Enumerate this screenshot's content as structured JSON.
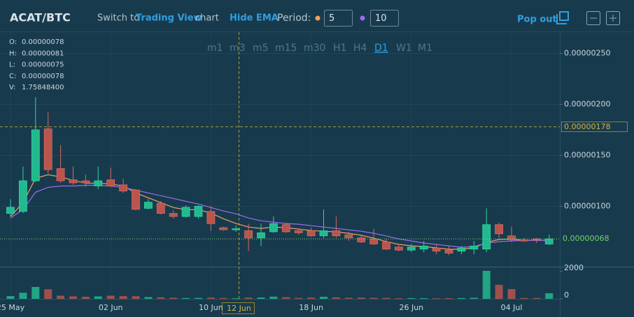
{
  "header": {
    "symbol": "ACAT/BTC",
    "switch_prefix": "Switch to",
    "switch_link": "Trading View",
    "switch_suffix": "chart",
    "ema_toggle": "Hide EMA",
    "period_label": "Period:",
    "pop_out": "Pop out"
  },
  "timeframes": {
    "items": [
      "m1",
      "m3",
      "m5",
      "m15",
      "m30",
      "H1",
      "H4",
      "D1",
      "W1",
      "M1"
    ],
    "active": "D1"
  },
  "ohlc_legend": [
    {
      "label": "O:",
      "value": "0.00000078"
    },
    {
      "label": "H:",
      "value": "0.00000081"
    },
    {
      "label": "L:",
      "value": "0.00000075"
    },
    {
      "label": "C:",
      "value": "0.00000078"
    },
    {
      "label": "V:",
      "value": "1.75848400"
    }
  ],
  "chart_data": {
    "type": "candlestick",
    "categories": [
      "25 May",
      null,
      null,
      null,
      null,
      null,
      null,
      null,
      "02 Jun",
      null,
      null,
      null,
      null,
      null,
      null,
      null,
      "10 Jun",
      null,
      null,
      null,
      null,
      null,
      null,
      null,
      "18 Jun",
      null,
      null,
      null,
      null,
      null,
      null,
      null,
      "26 Jun",
      null,
      null,
      null,
      null,
      null,
      null,
      null,
      "04 Jul",
      null,
      null,
      null
    ],
    "open": [
      9.3e-07,
      9.5e-07,
      1.25e-06,
      1.76e-06,
      1.37e-06,
      1.26e-06,
      1.25e-06,
      1.2e-06,
      1.26e-06,
      1.21e-06,
      1.16e-06,
      9.8e-07,
      1.03e-06,
      9.3e-07,
      9e-07,
      9e-07,
      9.5e-07,
      7.9e-07,
      7.8e-07,
      7.6e-07,
      6.9e-07,
      7.5e-07,
      8.2e-07,
      7.6e-07,
      7.6e-07,
      7.1e-07,
      7.6e-07,
      7.2e-07,
      6.9e-07,
      6.8e-07,
      6.5e-07,
      6e-07,
      5.7e-07,
      5.8e-07,
      5.9e-07,
      5.7e-07,
      5.6e-07,
      5.8e-07,
      5.8e-07,
      8.2e-07,
      7.1e-07,
      6.7e-07,
      6.8e-07,
      6.3e-07
    ],
    "high": [
      1.07e-06,
      1.39e-06,
      2.07e-06,
      1.92e-06,
      1.6e-06,
      1.39e-06,
      1.31e-06,
      1.39e-06,
      1.38e-06,
      1.27e-06,
      1.17e-06,
      1.07e-06,
      1.05e-06,
      9.6e-07,
      1.01e-06,
      1.01e-06,
      1e-06,
      8e-07,
      8.1e-07,
      8.3e-07,
      8.3e-07,
      9e-07,
      8.4e-07,
      7.7e-07,
      7.9e-07,
      9.7e-07,
      9e-07,
      7.5e-07,
      7.2e-07,
      7.8e-07,
      6.8e-07,
      6.3e-07,
      6.3e-07,
      6.6e-07,
      6.3e-07,
      6.1e-07,
      6.1e-07,
      6.6e-07,
      9.8e-07,
      8.4e-07,
      8e-07,
      6.9e-07,
      6.9e-07,
      7.2e-07
    ],
    "low": [
      9e-07,
      9.3e-07,
      1.24e-06,
      1.32e-06,
      1.23e-06,
      1.21e-06,
      1.19e-06,
      1.17e-06,
      1.19e-06,
      1.13e-06,
      9.6e-07,
      9.7e-07,
      9.2e-07,
      8.8e-07,
      8.9e-07,
      8.8e-07,
      7.6e-07,
      7.6e-07,
      7.5e-07,
      5.6e-07,
      6.1e-07,
      7.4e-07,
      7.4e-07,
      7.2e-07,
      7e-07,
      6.9e-07,
      6.9e-07,
      6.6e-07,
      6.4e-07,
      6.2e-07,
      5.7e-07,
      5.6e-07,
      5.5e-07,
      5.5e-07,
      5.3e-07,
      5.2e-07,
      5.3e-07,
      5.3e-07,
      5.5e-07,
      6.9e-07,
      6.5e-07,
      6.5e-07,
      6.4e-07,
      6.2e-07
    ],
    "close": [
      9.9e-07,
      1.25e-06,
      1.75e-06,
      1.36e-06,
      1.25e-06,
      1.23e-06,
      1.23e-06,
      1.25e-06,
      1.2e-06,
      1.15e-06,
      9.7e-07,
      1.04e-06,
      9.3e-07,
      9e-07,
      9.9e-07,
      1e-06,
      8.3e-07,
      7.7e-07,
      7.8e-07,
      6.9e-07,
      7.4e-07,
      8.3e-07,
      7.5e-07,
      7.4e-07,
      7.1e-07,
      7.6e-07,
      7.1e-07,
      6.9e-07,
      6.5e-07,
      6.3e-07,
      5.8e-07,
      5.7e-07,
      6e-07,
      6.1e-07,
      5.6e-07,
      5.4e-07,
      5.9e-07,
      6.1e-07,
      8.2e-07,
      7.3e-07,
      6.7e-07,
      6.6e-07,
      6.7e-07,
      6.8e-07
    ],
    "up_color": "#23b98e",
    "down_color": "#b9554c",
    "ylim": [
      4.07e-07,
      2.709e-06
    ],
    "yticks": [
      {
        "value": 2.5e-06,
        "label": "0.00000250"
      },
      {
        "value": 2e-06,
        "label": "0.00000200"
      },
      {
        "value": 1.5e-06,
        "label": "0.00000150"
      },
      {
        "value": 1e-06,
        "label": "0.00000100"
      }
    ],
    "grid": true,
    "ema": [
      {
        "period": 5,
        "color": "#f0a060",
        "values": [
          8.99e-07,
          1.036e-06,
          1.275e-06,
          1.309e-06,
          1.288e-06,
          1.254e-06,
          1.227e-06,
          1.227e-06,
          1.22e-06,
          1.199e-06,
          1.131e-06,
          1.083e-06,
          1.036e-06,
          9.88e-07,
          9.67e-07,
          9.67e-07,
          9.33e-07,
          8.78e-07,
          8.31e-07,
          7.96e-07,
          7.83e-07,
          7.96e-07,
          7.9e-07,
          7.76e-07,
          7.62e-07,
          7.55e-07,
          7.49e-07,
          7.35e-07,
          7.15e-07,
          6.87e-07,
          6.53e-07,
          6.26e-07,
          6.12e-07,
          6.05e-07,
          5.92e-07,
          5.78e-07,
          5.78e-07,
          5.92e-07,
          6.46e-07,
          6.74e-07,
          6.8e-07,
          6.67e-07,
          6.67e-07,
          6.67e-07
        ]
      },
      {
        "period": 10,
        "color": "#9b6cf2",
        "values": [
          8.85e-07,
          9.67e-07,
          1.138e-06,
          1.186e-06,
          1.199e-06,
          1.199e-06,
          1.206e-06,
          1.206e-06,
          1.199e-06,
          1.186e-06,
          1.158e-06,
          1.131e-06,
          1.104e-06,
          1.077e-06,
          1.049e-06,
          1.022e-06,
          9.88e-07,
          9.54e-07,
          9.26e-07,
          8.85e-07,
          8.58e-07,
          8.44e-07,
          8.31e-07,
          8.24e-07,
          8.1e-07,
          7.96e-07,
          7.83e-07,
          7.69e-07,
          7.55e-07,
          7.35e-07,
          7.08e-07,
          6.8e-07,
          6.6e-07,
          6.39e-07,
          6.26e-07,
          6.12e-07,
          5.98e-07,
          6.05e-07,
          6.39e-07,
          6.53e-07,
          6.6e-07,
          6.67e-07,
          6.67e-07,
          6.67e-07
        ]
      }
    ],
    "volume": {
      "values": [
        200,
        450,
        870,
        700,
        230,
        180,
        150,
        180,
        230,
        200,
        190,
        130,
        110,
        80,
        60,
        70,
        90,
        60,
        40,
        90,
        100,
        160,
        120,
        70,
        90,
        150,
        110,
        80,
        90,
        80,
        70,
        40,
        60,
        50,
        40,
        50,
        60,
        80,
        2050,
        1030,
        720,
        60,
        60,
        410
      ],
      "ylim": [
        0,
        2350
      ],
      "yticks": [
        2000,
        0
      ]
    },
    "last_price": {
      "value": 6.8e-07,
      "label": "0.00000068"
    },
    "crosshair": {
      "x_label": "12 Jun",
      "y": {
        "value": 1.78e-06,
        "label": "0.00000178"
      }
    }
  }
}
